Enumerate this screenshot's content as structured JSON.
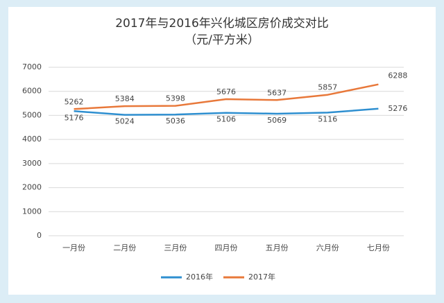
{
  "chart_data": {
    "type": "line",
    "title": "2017年与2016年兴化城区房价成交对比",
    "subtitle": "（元/平方米）",
    "categories": [
      "一月份",
      "二月份",
      "三月份",
      "四月份",
      "五月份",
      "六月份",
      "七月份"
    ],
    "series": [
      {
        "name": "2016年",
        "color": "#2e8fd0",
        "values": [
          5176,
          5024,
          5036,
          5106,
          5069,
          5116,
          5276
        ]
      },
      {
        "name": "2017年",
        "color": "#e8783a",
        "values": [
          5262,
          5384,
          5398,
          5676,
          5637,
          5857,
          6288
        ]
      }
    ],
    "ylim": [
      0,
      7000
    ],
    "yticks": [
      0,
      1000,
      2000,
      3000,
      4000,
      5000,
      6000,
      7000
    ],
    "grid": true,
    "legend": "bottom"
  }
}
